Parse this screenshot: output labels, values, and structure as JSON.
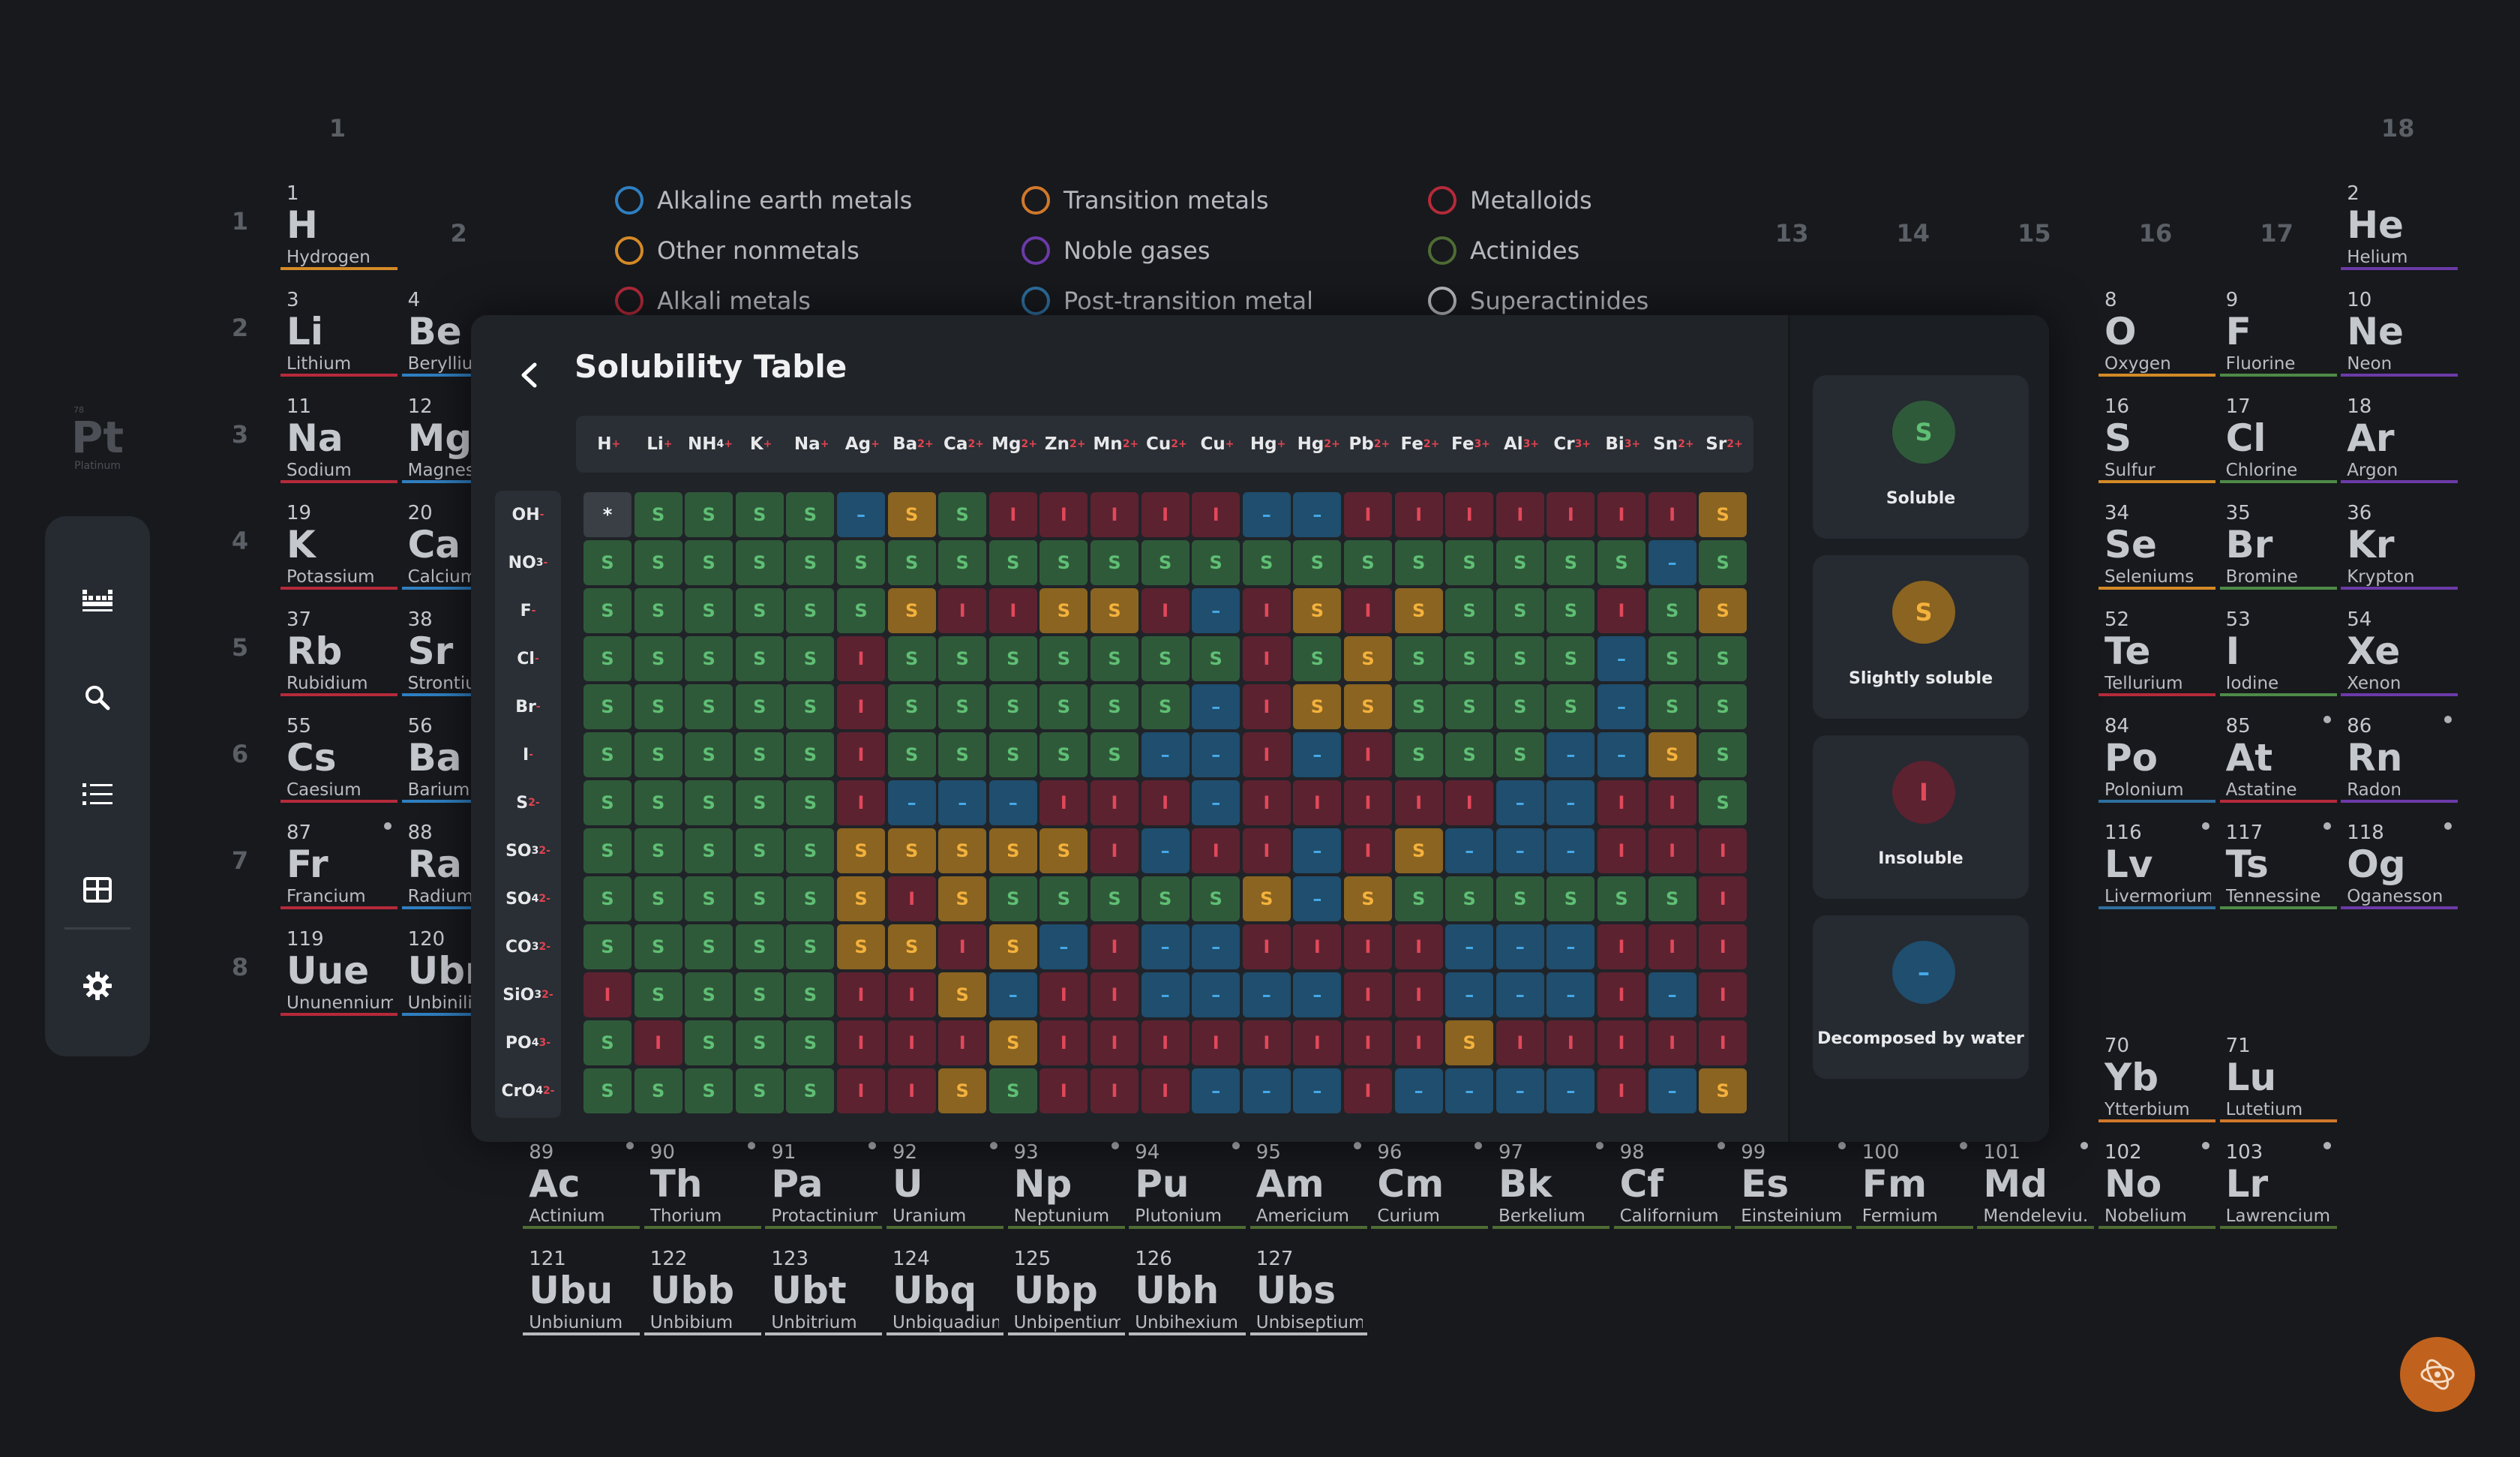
{
  "app_logo": {
    "number": "78",
    "symbol": "Pt",
    "name": "Platinum"
  },
  "groups": [
    {
      "label": "1",
      "col": 1
    },
    {
      "label": "2",
      "col": 2
    },
    {
      "label": "13",
      "col": 13
    },
    {
      "label": "14",
      "col": 14
    },
    {
      "label": "15",
      "col": 15
    },
    {
      "label": "16",
      "col": 16
    },
    {
      "label": "17",
      "col": 17
    },
    {
      "label": "18",
      "col": 18
    }
  ],
  "periods": [
    "1",
    "2",
    "3",
    "4",
    "5",
    "6",
    "7",
    "8"
  ],
  "legend": [
    {
      "label": "Alkaline earth metals",
      "color": "#2f7fc1"
    },
    {
      "label": "Transition metals",
      "color": "#d0782b"
    },
    {
      "label": "Metalloids",
      "color": "#b52a3a"
    },
    {
      "label": "Other nonmetals",
      "color": "#d48a27"
    },
    {
      "label": "Noble gases",
      "color": "#6c3aa8"
    },
    {
      "label": "Actinides",
      "color": "#4e6c34"
    },
    {
      "label": "Alkali metals",
      "color": "#b52a3a"
    },
    {
      "label": "Post-transition metal",
      "color": "#2f6f9f"
    },
    {
      "label": "Superactinides",
      "color": "#b7b9bd"
    }
  ],
  "elements": [
    {
      "n": "1",
      "s": "H",
      "name": "Hydrogen",
      "col": 1,
      "row": 1,
      "color": "#d48a27"
    },
    {
      "n": "2",
      "s": "He",
      "name": "Helium",
      "col": 18,
      "row": 1,
      "color": "#6c3aa8"
    },
    {
      "n": "3",
      "s": "Li",
      "name": "Lithium",
      "col": 1,
      "row": 2,
      "color": "#b52a3a"
    },
    {
      "n": "4",
      "s": "Be",
      "name": "Beryllium",
      "col": 2,
      "row": 2,
      "color": "#2f7fc1"
    },
    {
      "n": "8",
      "s": "O",
      "name": "Oxygen",
      "col": 16,
      "row": 2,
      "color": "#d48a27"
    },
    {
      "n": "9",
      "s": "F",
      "name": "Fluorine",
      "col": 17,
      "row": 2,
      "color": "#4f8a48"
    },
    {
      "n": "10",
      "s": "Ne",
      "name": "Neon",
      "col": 18,
      "row": 2,
      "color": "#6c3aa8"
    },
    {
      "n": "11",
      "s": "Na",
      "name": "Sodium",
      "col": 1,
      "row": 3,
      "color": "#b52a3a"
    },
    {
      "n": "12",
      "s": "Mg",
      "name": "Magnesium",
      "col": 2,
      "row": 3,
      "color": "#2f7fc1"
    },
    {
      "n": "16",
      "s": "S",
      "name": "Sulfur",
      "col": 16,
      "row": 3,
      "color": "#d48a27"
    },
    {
      "n": "17",
      "s": "Cl",
      "name": "Chlorine",
      "col": 17,
      "row": 3,
      "color": "#4f8a48"
    },
    {
      "n": "18",
      "s": "Ar",
      "name": "Argon",
      "col": 18,
      "row": 3,
      "color": "#6c3aa8"
    },
    {
      "n": "19",
      "s": "K",
      "name": "Potassium",
      "col": 1,
      "row": 4,
      "color": "#b52a3a"
    },
    {
      "n": "20",
      "s": "Ca",
      "name": "Calcium",
      "col": 2,
      "row": 4,
      "color": "#2f7fc1"
    },
    {
      "n": "34",
      "s": "Se",
      "name": "Seleniums",
      "col": 16,
      "row": 4,
      "color": "#d48a27"
    },
    {
      "n": "35",
      "s": "Br",
      "name": "Bromine",
      "col": 17,
      "row": 4,
      "color": "#4f8a48"
    },
    {
      "n": "36",
      "s": "Kr",
      "name": "Krypton",
      "col": 18,
      "row": 4,
      "color": "#6c3aa8"
    },
    {
      "n": "37",
      "s": "Rb",
      "name": "Rubidium",
      "col": 1,
      "row": 5,
      "color": "#b52a3a"
    },
    {
      "n": "38",
      "s": "Sr",
      "name": "Strontium",
      "col": 2,
      "row": 5,
      "color": "#2f7fc1"
    },
    {
      "n": "52",
      "s": "Te",
      "name": "Tellurium",
      "col": 16,
      "row": 5,
      "color": "#b52a3a"
    },
    {
      "n": "53",
      "s": "I",
      "name": "Iodine",
      "col": 17,
      "row": 5,
      "color": "#4f8a48"
    },
    {
      "n": "54",
      "s": "Xe",
      "name": "Xenon",
      "col": 18,
      "row": 5,
      "color": "#6c3aa8"
    },
    {
      "n": "55",
      "s": "Cs",
      "name": "Caesium",
      "col": 1,
      "row": 6,
      "color": "#b52a3a"
    },
    {
      "n": "56",
      "s": "Ba",
      "name": "Barium",
      "col": 2,
      "row": 6,
      "color": "#2f7fc1"
    },
    {
      "n": "84",
      "s": "Po",
      "name": "Polonium",
      "col": 16,
      "row": 6,
      "color": "#2f6f9f"
    },
    {
      "n": "85",
      "s": "At",
      "name": "Astatine",
      "col": 17,
      "row": 6,
      "color": "#b52a3a",
      "dot": true
    },
    {
      "n": "86",
      "s": "Rn",
      "name": "Radon",
      "col": 18,
      "row": 6,
      "color": "#6c3aa8",
      "dot": true
    },
    {
      "n": "87",
      "s": "Fr",
      "name": "Francium",
      "col": 1,
      "row": 7,
      "color": "#b52a3a",
      "dot": true
    },
    {
      "n": "88",
      "s": "Ra",
      "name": "Radium",
      "col": 2,
      "row": 7,
      "color": "#2f7fc1",
      "dot": true
    },
    {
      "n": "116",
      "s": "Lv",
      "name": "Livermorium",
      "col": 16,
      "row": 7,
      "color": "#2f6f9f",
      "dot": true
    },
    {
      "n": "117",
      "s": "Ts",
      "name": "Tennessine",
      "col": 17,
      "row": 7,
      "color": "#4f8a48",
      "dot": true
    },
    {
      "n": "118",
      "s": "Og",
      "name": "Oganesson",
      "col": 18,
      "row": 7,
      "color": "#6c3aa8",
      "dot": true
    },
    {
      "n": "119",
      "s": "Uue",
      "name": "Ununennium",
      "col": 1,
      "row": 8,
      "color": "#b52a3a"
    },
    {
      "n": "120",
      "s": "Ubn",
      "name": "Unbinilium",
      "col": 2,
      "row": 8,
      "color": "#2f7fc1"
    },
    {
      "n": "70",
      "s": "Yb",
      "name": "Ytterbium",
      "col": 16,
      "row": 9,
      "color": "#d0782b"
    },
    {
      "n": "71",
      "s": "Lu",
      "name": "Lutetium",
      "col": 17,
      "row": 9,
      "color": "#d0782b"
    },
    {
      "n": "89",
      "s": "Ac",
      "name": "Actinium",
      "col": 3,
      "row": 10,
      "color": "#4e6c34",
      "dot": true
    },
    {
      "n": "90",
      "s": "Th",
      "name": "Thorium",
      "col": 4,
      "row": 10,
      "color": "#4e6c34",
      "dot": true
    },
    {
      "n": "91",
      "s": "Pa",
      "name": "Protactinium",
      "col": 5,
      "row": 10,
      "color": "#4e6c34",
      "dot": true
    },
    {
      "n": "92",
      "s": "U",
      "name": "Uranium",
      "col": 6,
      "row": 10,
      "color": "#4e6c34",
      "dot": true
    },
    {
      "n": "93",
      "s": "Np",
      "name": "Neptunium",
      "col": 7,
      "row": 10,
      "color": "#4e6c34",
      "dot": true
    },
    {
      "n": "94",
      "s": "Pu",
      "name": "Plutonium",
      "col": 8,
      "row": 10,
      "color": "#4e6c34",
      "dot": true
    },
    {
      "n": "95",
      "s": "Am",
      "name": "Americium",
      "col": 9,
      "row": 10,
      "color": "#4e6c34",
      "dot": true
    },
    {
      "n": "96",
      "s": "Cm",
      "name": "Curium",
      "col": 10,
      "row": 10,
      "color": "#4e6c34",
      "dot": true
    },
    {
      "n": "97",
      "s": "Bk",
      "name": "Berkelium",
      "col": 11,
      "row": 10,
      "color": "#4e6c34",
      "dot": true
    },
    {
      "n": "98",
      "s": "Cf",
      "name": "Californium",
      "col": 12,
      "row": 10,
      "color": "#4e6c34",
      "dot": true
    },
    {
      "n": "99",
      "s": "Es",
      "name": "Einsteinium",
      "col": 13,
      "row": 10,
      "color": "#4e6c34",
      "dot": true
    },
    {
      "n": "100",
      "s": "Fm",
      "name": "Fermium",
      "col": 14,
      "row": 10,
      "color": "#4e6c34",
      "dot": true
    },
    {
      "n": "101",
      "s": "Md",
      "name": "Mendeleviu...",
      "col": 15,
      "row": 10,
      "color": "#4e6c34",
      "dot": true
    },
    {
      "n": "102",
      "s": "No",
      "name": "Nobelium",
      "col": 16,
      "row": 10,
      "color": "#4e6c34",
      "dot": true
    },
    {
      "n": "103",
      "s": "Lr",
      "name": "Lawrencium",
      "col": 17,
      "row": 10,
      "color": "#4e6c34",
      "dot": true
    },
    {
      "n": "121",
      "s": "Ubu",
      "name": "Unbiunium",
      "col": 3,
      "row": 11,
      "color": "#b7b9bd"
    },
    {
      "n": "122",
      "s": "Ubb",
      "name": "Unbibium",
      "col": 4,
      "row": 11,
      "color": "#b7b9bd"
    },
    {
      "n": "123",
      "s": "Ubt",
      "name": "Unbitrium",
      "col": 5,
      "row": 11,
      "color": "#b7b9bd"
    },
    {
      "n": "124",
      "s": "Ubq",
      "name": "Unbiquadium",
      "col": 6,
      "row": 11,
      "color": "#b7b9bd"
    },
    {
      "n": "125",
      "s": "Ubp",
      "name": "Unbipentium",
      "col": 7,
      "row": 11,
      "color": "#b7b9bd"
    },
    {
      "n": "126",
      "s": "Ubh",
      "name": "Unbihexium",
      "col": 8,
      "row": 11,
      "color": "#b7b9bd"
    },
    {
      "n": "127",
      "s": "Ubs",
      "name": "Unbiseptium",
      "col": 9,
      "row": 11,
      "color": "#b7b9bd"
    }
  ],
  "solubility": {
    "title": "Solubility Table",
    "cations": [
      {
        "base": "H",
        "charge": "+"
      },
      {
        "base": "Li",
        "charge": "+"
      },
      {
        "base": "NH",
        "sub": "4",
        "charge": "+"
      },
      {
        "base": "K",
        "charge": "+"
      },
      {
        "base": "Na",
        "charge": "+"
      },
      {
        "base": "Ag",
        "charge": "+"
      },
      {
        "base": "Ba",
        "charge": "2+"
      },
      {
        "base": "Ca",
        "charge": "2+"
      },
      {
        "base": "Mg",
        "charge": "2+"
      },
      {
        "base": "Zn",
        "charge": "2+"
      },
      {
        "base": "Mn",
        "charge": "2+"
      },
      {
        "base": "Cu",
        "charge": "2+"
      },
      {
        "base": "Cu",
        "charge": "+"
      },
      {
        "base": "Hg",
        "charge": "+"
      },
      {
        "base": "Hg",
        "charge": "2+"
      },
      {
        "base": "Pb",
        "charge": "2+"
      },
      {
        "base": "Fe",
        "charge": "2+"
      },
      {
        "base": "Fe",
        "charge": "3+"
      },
      {
        "base": "Al",
        "charge": "3+"
      },
      {
        "base": "Cr",
        "charge": "3+"
      },
      {
        "base": "Bi",
        "charge": "3+"
      },
      {
        "base": "Sn",
        "charge": "2+"
      },
      {
        "base": "Sr",
        "charge": "2+"
      }
    ],
    "anions": [
      {
        "base": "OH",
        "charge": "-"
      },
      {
        "base": "NO",
        "sub": "3",
        "charge": "-"
      },
      {
        "base": "F",
        "charge": "-"
      },
      {
        "base": "Cl",
        "charge": "-"
      },
      {
        "base": "Br",
        "charge": "-"
      },
      {
        "base": "I",
        "charge": "-"
      },
      {
        "base": "S",
        "charge": "2-"
      },
      {
        "base": "SO",
        "sub": "3",
        "charge": "2-"
      },
      {
        "base": "SO",
        "sub": "4",
        "charge": "2-"
      },
      {
        "base": "CO",
        "sub": "3",
        "charge": "2-"
      },
      {
        "base": "SiO",
        "sub": "3",
        "charge": "2-"
      },
      {
        "base": "PO",
        "sub": "4",
        "charge": "3-"
      },
      {
        "base": "CrO",
        "sub": "4",
        "charge": "2-"
      }
    ],
    "rows": [
      [
        "*",
        "S",
        "S",
        "S",
        "S",
        "D",
        "SS",
        "S",
        "I",
        "I",
        "I",
        "I",
        "I",
        "D",
        "D",
        "I",
        "I",
        "I",
        "I",
        "I",
        "I",
        "I",
        "SS"
      ],
      [
        "S",
        "S",
        "S",
        "S",
        "S",
        "S",
        "S",
        "S",
        "S",
        "S",
        "S",
        "S",
        "S",
        "S",
        "S",
        "S",
        "S",
        "S",
        "S",
        "S",
        "S",
        "D",
        "S"
      ],
      [
        "S",
        "S",
        "S",
        "S",
        "S",
        "S",
        "SS",
        "I",
        "I",
        "SS",
        "SS",
        "I",
        "D",
        "I",
        "SS",
        "I",
        "SS",
        "S",
        "S",
        "S",
        "I",
        "S",
        "SS"
      ],
      [
        "S",
        "S",
        "S",
        "S",
        "S",
        "I",
        "S",
        "S",
        "S",
        "S",
        "S",
        "S",
        "S",
        "I",
        "S",
        "SS",
        "S",
        "S",
        "S",
        "S",
        "D",
        "S",
        "S"
      ],
      [
        "S",
        "S",
        "S",
        "S",
        "S",
        "I",
        "S",
        "S",
        "S",
        "S",
        "S",
        "S",
        "D",
        "I",
        "SS",
        "SS",
        "S",
        "S",
        "S",
        "S",
        "D",
        "S",
        "S"
      ],
      [
        "S",
        "S",
        "S",
        "S",
        "S",
        "I",
        "S",
        "S",
        "S",
        "S",
        "S",
        "D",
        "D",
        "I",
        "D",
        "I",
        "S",
        "S",
        "S",
        "D",
        "D",
        "SS",
        "S"
      ],
      [
        "S",
        "S",
        "S",
        "S",
        "S",
        "I",
        "D",
        "D",
        "D",
        "I",
        "I",
        "I",
        "D",
        "I",
        "I",
        "I",
        "I",
        "I",
        "D",
        "D",
        "I",
        "I",
        "S"
      ],
      [
        "S",
        "S",
        "S",
        "S",
        "S",
        "SS",
        "SS",
        "SS",
        "SS",
        "SS",
        "I",
        "D",
        "I",
        "I",
        "D",
        "I",
        "SS",
        "D",
        "D",
        "D",
        "I",
        "I",
        "I"
      ],
      [
        "S",
        "S",
        "S",
        "S",
        "S",
        "SS",
        "I",
        "SS",
        "S",
        "S",
        "S",
        "S",
        "S",
        "SS",
        "D",
        "SS",
        "S",
        "S",
        "S",
        "S",
        "S",
        "S",
        "I"
      ],
      [
        "S",
        "S",
        "S",
        "S",
        "S",
        "SS",
        "SS",
        "I",
        "SS",
        "D",
        "I",
        "D",
        "D",
        "I",
        "I",
        "I",
        "I",
        "D",
        "D",
        "D",
        "I",
        "I",
        "I"
      ],
      [
        "I",
        "S",
        "S",
        "S",
        "S",
        "I",
        "I",
        "SS",
        "D",
        "I",
        "I",
        "D",
        "D",
        "D",
        "D",
        "I",
        "I",
        "D",
        "D",
        "D",
        "I",
        "D",
        "I"
      ],
      [
        "S",
        "I",
        "S",
        "S",
        "S",
        "I",
        "I",
        "I",
        "SS",
        "I",
        "I",
        "I",
        "I",
        "I",
        "I",
        "I",
        "I",
        "SS",
        "I",
        "I",
        "I",
        "I",
        "I"
      ],
      [
        "S",
        "S",
        "S",
        "S",
        "S",
        "I",
        "I",
        "SS",
        "S",
        "I",
        "I",
        "I",
        "D",
        "D",
        "D",
        "I",
        "D",
        "D",
        "D",
        "D",
        "I",
        "D",
        "SS"
      ]
    ],
    "symbols": {
      "S": "S",
      "SS": "S",
      "I": "I",
      "D": "–",
      "*": "*"
    },
    "key": [
      {
        "symbol": "S",
        "label": "Soluble",
        "class": "c-S",
        "fill": "#2f5a3a",
        "fg": "#5fbf74"
      },
      {
        "symbol": "S",
        "label": "Slightly soluble",
        "class": "c-SS",
        "fill": "#8a6420",
        "fg": "#f4b13d"
      },
      {
        "symbol": "I",
        "label": "Insoluble",
        "class": "c-I",
        "fill": "#5c2230",
        "fg": "#e2485a"
      },
      {
        "symbol": "–",
        "label": "Decomposed by water",
        "class": "c-D",
        "fill": "#1f4e6e",
        "fg": "#45a8e6"
      }
    ]
  }
}
